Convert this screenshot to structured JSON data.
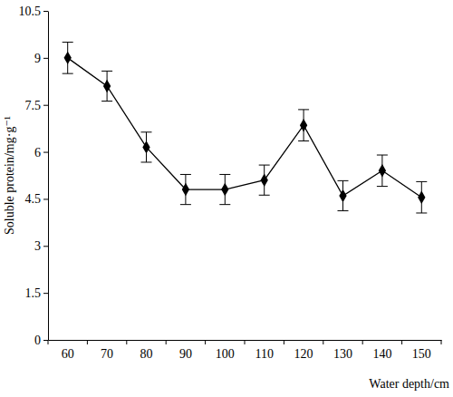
{
  "chart_data": {
    "type": "line",
    "x_label": "Water depth/cm",
    "y_label": "Soluble protein/mg·g⁻¹",
    "categories": [
      "60",
      "70",
      "80",
      "90",
      "100",
      "110",
      "120",
      "130",
      "140",
      "150"
    ],
    "values": [
      9.0,
      8.1,
      6.15,
      4.8,
      4.8,
      5.1,
      6.85,
      4.6,
      5.4,
      4.55
    ],
    "errors": [
      0.5,
      0.48,
      0.48,
      0.48,
      0.48,
      0.48,
      0.5,
      0.48,
      0.5,
      0.5
    ],
    "color": "#000000",
    "marker": "diamond",
    "ylim": [
      0,
      10.5
    ],
    "yticks": [
      0,
      1.5,
      3,
      4.5,
      6,
      7.5,
      9,
      10.5
    ],
    "grid": false
  }
}
